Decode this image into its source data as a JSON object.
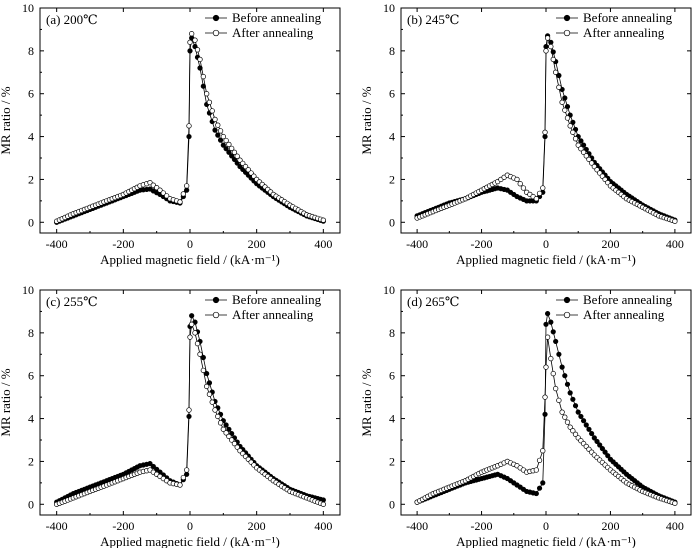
{
  "chart_data": [
    {
      "type": "scatter",
      "panel_label": "(a) 200℃",
      "xlabel": "Applied magnetic field / (kA·m⁻¹)",
      "ylabel": "MR ratio / %",
      "xlim": [
        -450,
        450
      ],
      "ylim": [
        -0.5,
        10
      ],
      "xticks": [
        "-400",
        "-200",
        "0",
        "200",
        "400"
      ],
      "yticks": [
        "0",
        "2",
        "4",
        "6",
        "8",
        "10"
      ],
      "legend_position": "top-right",
      "series": [
        {
          "name": "Before annealing",
          "marker": "filled-circle",
          "x": [
            -400,
            -350,
            -300,
            -250,
            -200,
            -150,
            -120,
            -90,
            -60,
            -30,
            -10,
            -3,
            0,
            5,
            15,
            30,
            50,
            75,
            100,
            150,
            200,
            250,
            300,
            350,
            400
          ],
          "y": [
            0.0,
            0.3,
            0.6,
            0.9,
            1.2,
            1.5,
            1.55,
            1.3,
            1.0,
            0.9,
            1.5,
            4.0,
            8.0,
            8.6,
            8.2,
            7.2,
            5.5,
            4.3,
            3.6,
            2.6,
            1.8,
            1.2,
            0.7,
            0.3,
            0.05
          ]
        },
        {
          "name": "After annealing",
          "marker": "open-circle",
          "x": [
            -400,
            -350,
            -300,
            -250,
            -200,
            -150,
            -120,
            -90,
            -60,
            -30,
            -10,
            -3,
            0,
            5,
            15,
            30,
            50,
            75,
            100,
            150,
            200,
            250,
            300,
            350,
            400
          ],
          "y": [
            0.05,
            0.4,
            0.7,
            1.0,
            1.3,
            1.7,
            1.85,
            1.5,
            1.1,
            0.95,
            1.7,
            4.5,
            8.4,
            8.8,
            8.5,
            7.6,
            6.0,
            4.8,
            4.0,
            2.9,
            2.0,
            1.3,
            0.8,
            0.35,
            0.1
          ]
        }
      ]
    },
    {
      "type": "scatter",
      "panel_label": "(b) 245℃",
      "xlabel": "Applied magnetic field / (kA·m⁻¹)",
      "ylabel": "MR ratio / %",
      "xlim": [
        -450,
        450
      ],
      "ylim": [
        -0.5,
        10
      ],
      "xticks": [
        "-400",
        "-200",
        "0",
        "200",
        "400"
      ],
      "yticks": [
        "0",
        "2",
        "4",
        "6",
        "8",
        "10"
      ],
      "legend_position": "top-right",
      "series": [
        {
          "name": "Before annealing",
          "marker": "filled-circle",
          "x": [
            -400,
            -350,
            -300,
            -250,
            -200,
            -150,
            -120,
            -90,
            -60,
            -30,
            -10,
            -3,
            0,
            5,
            15,
            30,
            50,
            75,
            100,
            150,
            200,
            250,
            300,
            350,
            400
          ],
          "y": [
            0.3,
            0.6,
            0.9,
            1.1,
            1.4,
            1.6,
            1.5,
            1.2,
            1.0,
            1.0,
            1.4,
            4.0,
            8.2,
            8.7,
            8.4,
            7.5,
            6.2,
            5.0,
            4.0,
            2.8,
            1.9,
            1.3,
            0.8,
            0.4,
            0.1
          ]
        },
        {
          "name": "After annealing",
          "marker": "open-circle",
          "x": [
            -400,
            -350,
            -300,
            -250,
            -200,
            -150,
            -120,
            -90,
            -60,
            -30,
            -10,
            -3,
            0,
            5,
            15,
            30,
            50,
            75,
            100,
            150,
            200,
            250,
            300,
            350,
            400
          ],
          "y": [
            0.2,
            0.5,
            0.8,
            1.1,
            1.5,
            1.9,
            2.2,
            2.0,
            1.4,
            1.1,
            1.6,
            4.2,
            8.0,
            8.6,
            8.2,
            7.0,
            5.6,
            4.5,
            3.6,
            2.6,
            1.7,
            1.1,
            0.7,
            0.3,
            0.05
          ]
        }
      ]
    },
    {
      "type": "scatter",
      "panel_label": "(c) 255℃",
      "xlabel": "Applied magnetic field / (kA·m⁻¹)",
      "ylabel": "MR ratio / %",
      "xlim": [
        -450,
        450
      ],
      "ylim": [
        -0.5,
        10
      ],
      "xticks": [
        "-400",
        "-200",
        "0",
        "200",
        "400"
      ],
      "yticks": [
        "0",
        "2",
        "4",
        "6",
        "8",
        "10"
      ],
      "legend_position": "top-right",
      "series": [
        {
          "name": "Before annealing",
          "marker": "filled-circle",
          "x": [
            -400,
            -350,
            -300,
            -250,
            -200,
            -150,
            -120,
            -90,
            -60,
            -30,
            -10,
            -3,
            0,
            5,
            15,
            30,
            50,
            75,
            100,
            150,
            200,
            250,
            300,
            350,
            400
          ],
          "y": [
            0.1,
            0.5,
            0.8,
            1.1,
            1.4,
            1.8,
            1.9,
            1.5,
            1.1,
            0.9,
            1.4,
            4.1,
            8.3,
            8.8,
            8.5,
            7.6,
            6.1,
            4.8,
            3.9,
            2.7,
            1.8,
            1.2,
            0.7,
            0.4,
            0.2
          ]
        },
        {
          "name": "After annealing",
          "marker": "open-circle",
          "x": [
            -400,
            -350,
            -300,
            -250,
            -200,
            -150,
            -120,
            -90,
            -60,
            -30,
            -10,
            -3,
            0,
            5,
            15,
            30,
            50,
            75,
            100,
            150,
            200,
            250,
            300,
            350,
            400
          ],
          "y": [
            0.0,
            0.3,
            0.6,
            0.9,
            1.2,
            1.5,
            1.6,
            1.3,
            1.0,
            0.9,
            1.6,
            4.4,
            7.8,
            8.4,
            8.0,
            7.0,
            5.5,
            4.4,
            3.5,
            2.5,
            1.7,
            1.1,
            0.6,
            0.3,
            0.0
          ]
        }
      ]
    },
    {
      "type": "scatter",
      "panel_label": "(d) 265℃",
      "xlabel": "Applied magnetic field / (kA·m⁻¹)",
      "ylabel": "MR ratio / %",
      "xlim": [
        -450,
        450
      ],
      "ylim": [
        -0.5,
        10
      ],
      "xticks": [
        "-400",
        "-200",
        "0",
        "200",
        "400"
      ],
      "yticks": [
        "0",
        "2",
        "4",
        "6",
        "8",
        "10"
      ],
      "legend_position": "top-right",
      "series": [
        {
          "name": "Before annealing",
          "marker": "filled-circle",
          "x": [
            -400,
            -350,
            -300,
            -250,
            -200,
            -150,
            -120,
            -90,
            -60,
            -30,
            -10,
            -3,
            0,
            5,
            15,
            30,
            50,
            75,
            100,
            150,
            200,
            250,
            300,
            350,
            400
          ],
          "y": [
            0.1,
            0.4,
            0.7,
            1.0,
            1.2,
            1.4,
            1.2,
            0.9,
            0.6,
            0.5,
            1.0,
            4.2,
            8.4,
            8.9,
            8.5,
            7.6,
            6.4,
            5.2,
            4.3,
            3.1,
            2.1,
            1.4,
            0.8,
            0.4,
            0.1
          ]
        },
        {
          "name": "After annealing",
          "marker": "open-circle",
          "x": [
            -400,
            -350,
            -300,
            -250,
            -200,
            -150,
            -120,
            -90,
            -60,
            -30,
            -10,
            -3,
            0,
            5,
            15,
            30,
            50,
            75,
            100,
            150,
            200,
            250,
            300,
            350,
            400
          ],
          "y": [
            0.1,
            0.5,
            0.8,
            1.1,
            1.5,
            1.8,
            2.0,
            1.8,
            1.5,
            1.6,
            2.5,
            5.0,
            6.4,
            7.8,
            6.8,
            5.4,
            4.3,
            3.6,
            3.1,
            2.3,
            1.6,
            1.0,
            0.6,
            0.3,
            0.05
          ]
        }
      ]
    }
  ]
}
